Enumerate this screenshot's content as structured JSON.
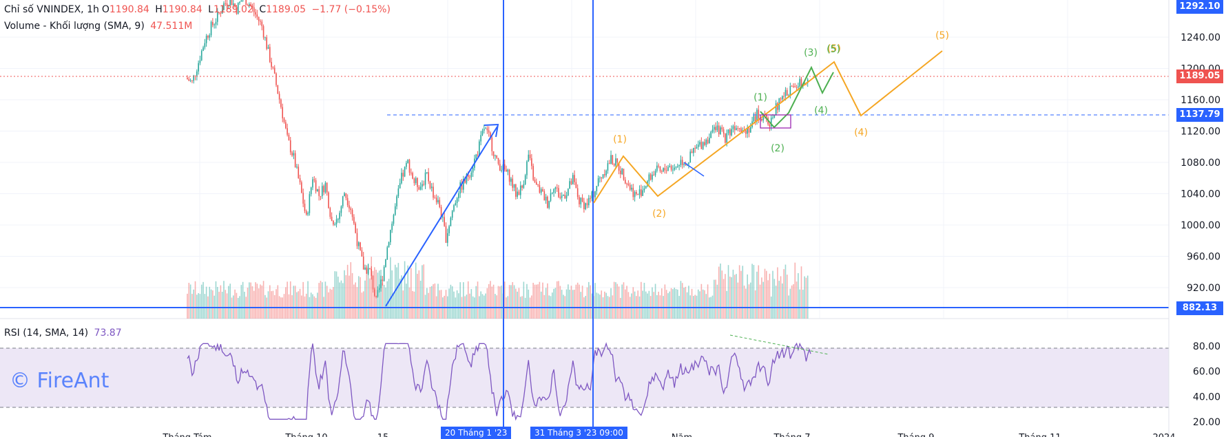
{
  "legend": {
    "symbol": "Chỉ số VNINDEX, 1h",
    "open_label": "O",
    "open": "1190.84",
    "high_label": "H",
    "high": "1190.84",
    "low_label": "L",
    "low": "1189.02",
    "close_label": "C",
    "close": "1189.05",
    "change": "−1.77 (−0.15%)",
    "volume_label": "Volume - Khối lượng (SMA, 9)",
    "volume_value": "47.511M",
    "rsi_label": "RSI (14, SMA, 14)",
    "rsi_value": "73.87"
  },
  "watermark": "© FireAnt",
  "badges": {
    "top_price": "1292.10",
    "current_price": "1189.05",
    "level_1137": "1137.79",
    "level_882": "882.13",
    "date_1": "20 Tháng 1 '23",
    "date_2": "31 Tháng 3 '23   09:00"
  },
  "colors": {
    "up": "#26a69a",
    "down": "#ef5350",
    "blue": "#2962ff",
    "orange": "#f5a623",
    "green": "#4caf50",
    "rsi": "#7e57c2",
    "rsi_band": "#ede7f6"
  },
  "chart_data": [
    {
      "type": "line",
      "name": "price",
      "y_axis_ticks": [
        1240,
        1200,
        1160,
        1120,
        1080,
        1040,
        1000,
        960,
        920
      ],
      "ylim": [
        860,
        1300
      ],
      "x_axis_labels": [
        "Tháng Tám",
        "Tháng 10",
        "15",
        "Năm",
        "Tháng 7",
        "Tháng 9",
        "Tháng 11",
        "2024"
      ],
      "path": [
        [
          0,
          1188
        ],
        [
          3,
          1182
        ],
        [
          6,
          1208
        ],
        [
          9,
          1236
        ],
        [
          12,
          1253
        ],
        [
          15,
          1266
        ],
        [
          18,
          1282
        ],
        [
          21,
          1289
        ],
        [
          24,
          1276
        ],
        [
          27,
          1291
        ],
        [
          30,
          1283
        ],
        [
          33,
          1269
        ],
        [
          36,
          1254
        ],
        [
          39,
          1221
        ],
        [
          42,
          1188
        ],
        [
          45,
          1152
        ],
        [
          48,
          1110
        ],
        [
          51,
          1086
        ],
        [
          54,
          1050
        ],
        [
          57,
          1008
        ],
        [
          60,
          1062
        ],
        [
          63,
          1038
        ],
        [
          66,
          1052
        ],
        [
          69,
          1005
        ],
        [
          72,
          1008
        ],
        [
          75,
          1042
        ],
        [
          78,
          1022
        ],
        [
          81,
          980
        ],
        [
          84,
          946
        ],
        [
          87,
          941
        ],
        [
          90,
          902
        ],
        [
          93,
          935
        ],
        [
          96,
          984
        ],
        [
          99,
          1022
        ],
        [
          102,
          1060
        ],
        [
          105,
          1080
        ],
        [
          108,
          1055
        ],
        [
          111,
          1050
        ],
        [
          114,
          1064
        ],
        [
          117,
          1040
        ],
        [
          120,
          1024
        ],
        [
          123,
          984
        ],
        [
          126,
          1018
        ],
        [
          129,
          1045
        ],
        [
          132,
          1056
        ],
        [
          135,
          1072
        ],
        [
          138,
          1094
        ],
        [
          141,
          1124
        ],
        [
          144,
          1108
        ],
        [
          147,
          1080
        ],
        [
          150,
          1072
        ],
        [
          153,
          1062
        ],
        [
          156,
          1040
        ],
        [
          159,
          1048
        ],
        [
          162,
          1089
        ],
        [
          165,
          1052
        ],
        [
          168,
          1042
        ],
        [
          171,
          1028
        ],
        [
          174,
          1052
        ],
        [
          177,
          1035
        ],
        [
          180,
          1042
        ],
        [
          183,
          1058
        ],
        [
          186,
          1030
        ],
        [
          189,
          1026
        ],
        [
          192,
          1036
        ],
        [
          195,
          1056
        ],
        [
          198,
          1070
        ],
        [
          201,
          1084
        ],
        [
          204,
          1077
        ],
        [
          207,
          1064
        ],
        [
          210,
          1048
        ],
        [
          213,
          1037
        ],
        [
          216,
          1046
        ],
        [
          219,
          1059
        ],
        [
          222,
          1070
        ],
        [
          225,
          1066
        ],
        [
          228,
          1076
        ],
        [
          231,
          1072
        ],
        [
          234,
          1082
        ],
        [
          237,
          1080
        ],
        [
          240,
          1094
        ],
        [
          243,
          1102
        ],
        [
          246,
          1109
        ],
        [
          249,
          1118
        ],
        [
          252,
          1122
        ],
        [
          255,
          1112
        ],
        [
          258,
          1124
        ],
        [
          261,
          1130
        ],
        [
          264,
          1121
        ],
        [
          267,
          1126
        ],
        [
          270,
          1142
        ],
        [
          273,
          1136
        ],
        [
          276,
          1130
        ],
        [
          279,
          1150
        ],
        [
          282,
          1162
        ],
        [
          285,
          1172
        ],
        [
          288,
          1177
        ],
        [
          291,
          1183
        ],
        [
          294,
          1189
        ]
      ]
    },
    {
      "type": "line",
      "name": "rsi",
      "y_axis_ticks": [
        80,
        60,
        40,
        20
      ],
      "ylim": [
        20,
        85
      ],
      "band": [
        30,
        70
      ]
    }
  ],
  "annotations": {
    "wave_labels_primary": [
      "(1)",
      "(2)",
      "(4)",
      "(5)",
      "(5)"
    ],
    "wave_labels_secondary": [
      "(1)",
      "(2)",
      "(3)",
      "(4)",
      "(5)"
    ]
  }
}
